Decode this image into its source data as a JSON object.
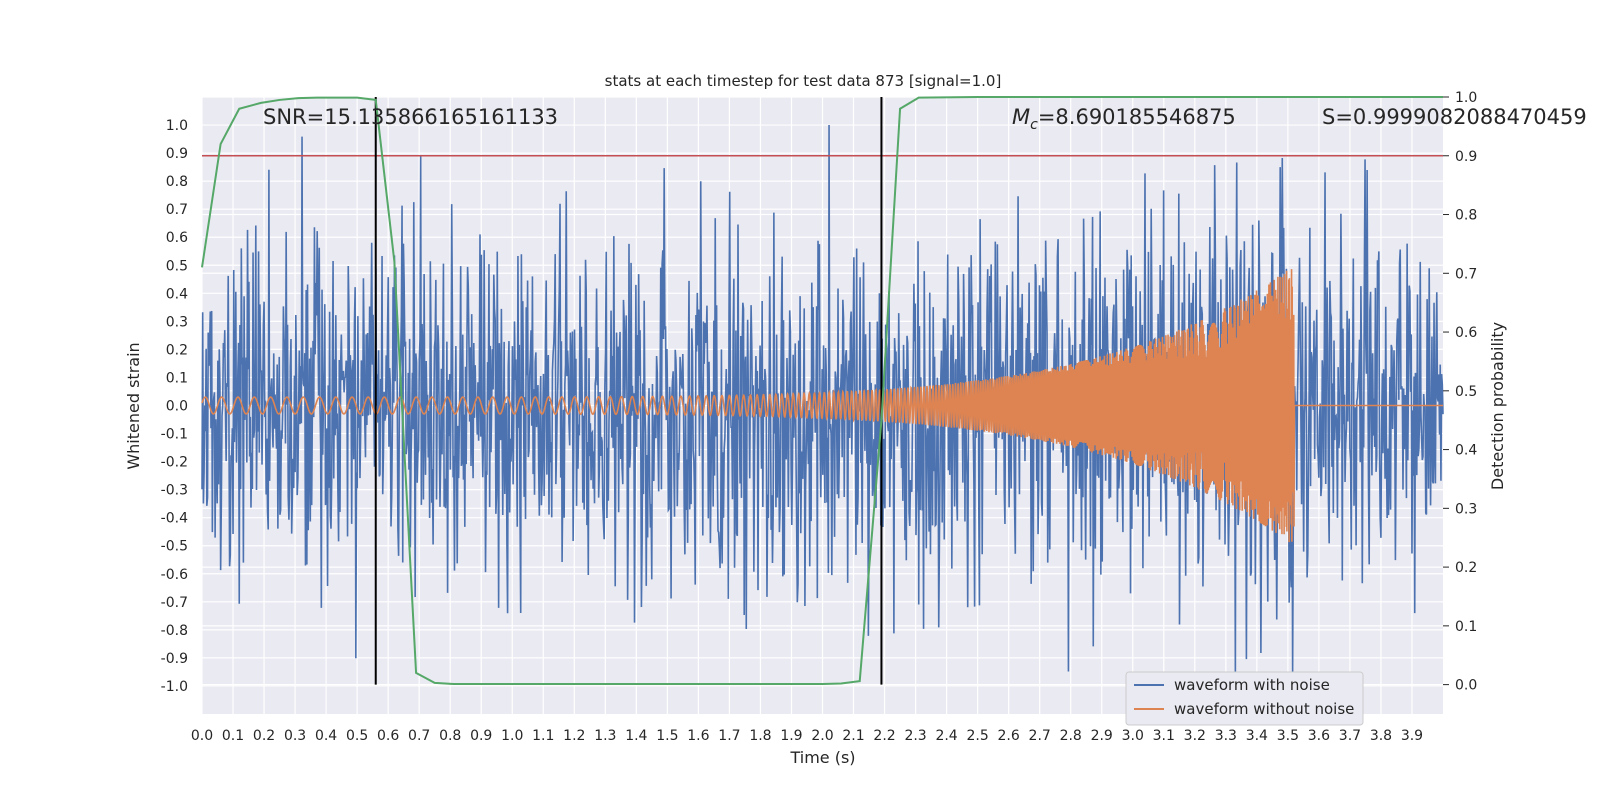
{
  "chart_data": {
    "type": "line",
    "title": "stats at each timestep for test data 873 [signal=1.0]",
    "xlabel": "Time (s)",
    "ylabel": "Whitened strain",
    "ylabel_right": "Detection probability",
    "xlim": [
      0.0,
      4.0
    ],
    "ylim": [
      -1.1,
      1.1
    ],
    "ylim_right": [
      -0.05,
      1.0
    ],
    "x_ticks": [
      "0.0",
      "0.1",
      "0.2",
      "0.3",
      "0.4",
      "0.5",
      "0.6",
      "0.7",
      "0.8",
      "0.9",
      "1.0",
      "1.1",
      "1.2",
      "1.3",
      "1.4",
      "1.5",
      "1.6",
      "1.7",
      "1.8",
      "1.9",
      "2.0",
      "2.1",
      "2.2",
      "2.3",
      "2.4",
      "2.5",
      "2.6",
      "2.7",
      "2.8",
      "2.9",
      "3.0",
      "3.1",
      "3.2",
      "3.3",
      "3.4",
      "3.5",
      "3.6",
      "3.7",
      "3.8",
      "3.9"
    ],
    "y_ticks": [
      "1.0",
      "0.9",
      "0.8",
      "0.7",
      "0.6",
      "0.5",
      "0.4",
      "0.3",
      "0.2",
      "0.1",
      "0.0",
      "-0.1",
      "-0.2",
      "-0.3",
      "-0.4",
      "-0.5",
      "-0.6",
      "-0.7",
      "-0.8",
      "-0.9",
      "-1.0"
    ],
    "y_ticks_right": [
      "1.0",
      "0.9",
      "0.8",
      "0.7",
      "0.6",
      "0.5",
      "0.4",
      "0.3",
      "0.2",
      "0.1",
      "0.0"
    ],
    "annotations": {
      "snr": "SNR=15.135866165161133",
      "mc_symbol": "M",
      "mc_sub": "c",
      "mc_value": "=8.690185546875",
      "s": "S=0.9999082088470459"
    },
    "threshold_right": 0.9,
    "vertical_lines_x": [
      0.56,
      2.19
    ],
    "grid": true,
    "legend_position": "lower-right",
    "series": [
      {
        "name": "waveform with noise",
        "axis": "left",
        "color": "#4c72b0",
        "duration_s": 4.0,
        "sample_count": 1800,
        "amplitude_range": [
          -0.97,
          1.0
        ],
        "description_values": {
          "typical_peak": 0.55,
          "max": 1.0,
          "min": -0.97
        }
      },
      {
        "name": "waveform without noise",
        "axis": "left",
        "color": "#dd8452",
        "start_amplitude": 0.03,
        "end_amplitude": 0.5,
        "merger_time_s": 3.52,
        "start_freq_hz": 20,
        "end_freq_hz": 110
      },
      {
        "name": "detection probability",
        "axis": "right",
        "color": "#55a868",
        "x": [
          0.0,
          0.06,
          0.12,
          0.19,
          0.25,
          0.31,
          0.37,
          0.44,
          0.5,
          0.56,
          0.62,
          0.69,
          0.75,
          0.81,
          1.0,
          1.5,
          2.0,
          2.06,
          2.12,
          2.19,
          2.25,
          2.31,
          2.5,
          3.0,
          3.5,
          4.0
        ],
        "y": [
          0.71,
          0.92,
          0.98,
          0.99,
          0.995,
          0.998,
          0.999,
          0.999,
          0.999,
          0.995,
          0.72,
          0.02,
          0.003,
          0.001,
          0.001,
          0.001,
          0.001,
          0.002,
          0.006,
          0.45,
          0.98,
          0.999,
          1.0,
          1.0,
          1.0,
          1.0
        ]
      }
    ]
  }
}
